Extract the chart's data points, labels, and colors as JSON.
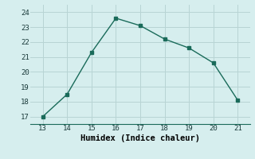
{
  "x": [
    13,
    14,
    15,
    16,
    17,
    18,
    19,
    20,
    21
  ],
  "y": [
    17.0,
    18.5,
    21.3,
    23.6,
    23.1,
    22.2,
    21.6,
    20.6,
    18.1
  ],
  "xlabel": "Humidex (Indice chaleur)",
  "line_color": "#1a6b5a",
  "bg_color": "#d6eeee",
  "grid_color": "#b8d4d4",
  "xlim": [
    12.5,
    21.5
  ],
  "ylim": [
    16.5,
    24.5
  ],
  "xticks": [
    13,
    14,
    15,
    16,
    17,
    18,
    19,
    20,
    21
  ],
  "yticks": [
    17,
    18,
    19,
    20,
    21,
    22,
    23,
    24
  ],
  "tick_fontsize": 6.5,
  "xlabel_fontsize": 7.5,
  "marker": "s",
  "marker_size": 2.5,
  "linewidth": 1.0
}
